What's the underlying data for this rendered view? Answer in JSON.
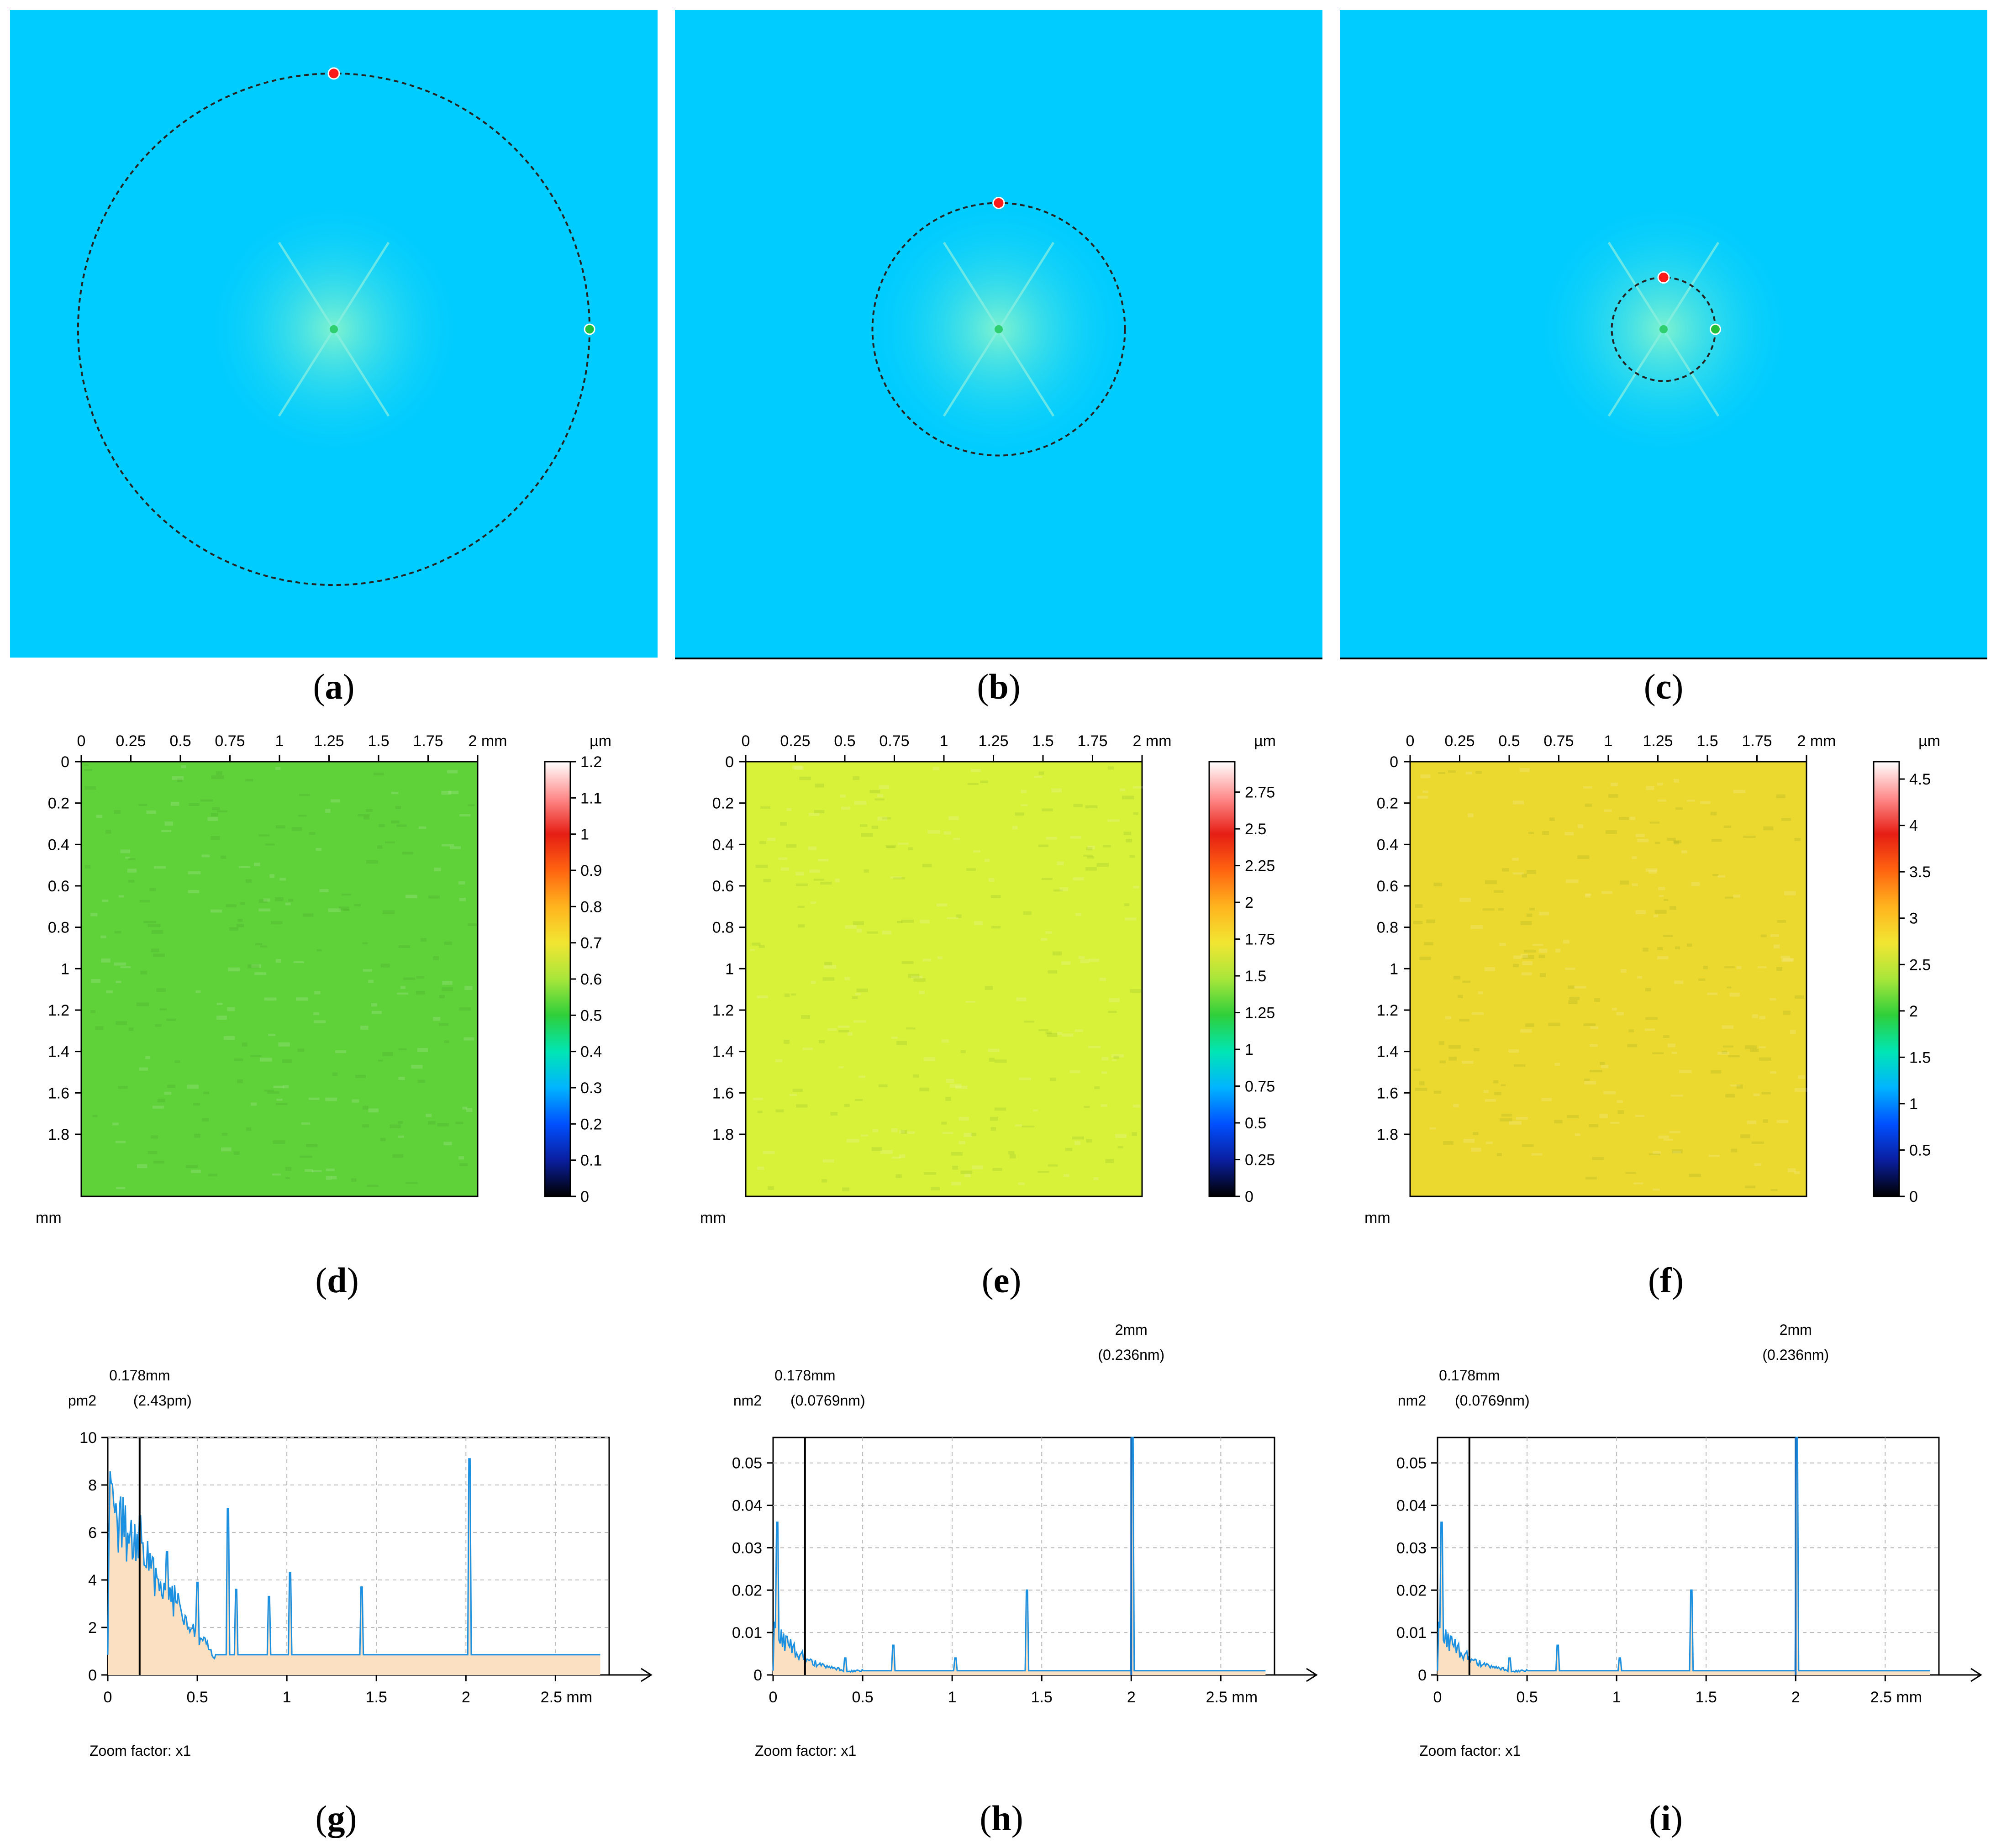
{
  "figure": {
    "fft_panels": [
      {
        "label": "a",
        "circle_radius_rel": 0.79
      },
      {
        "label": "b",
        "circle_radius_rel": 0.39
      },
      {
        "label": "c",
        "circle_radius_rel": 0.16
      }
    ],
    "height_maps": [
      {
        "label": "d",
        "unit": "µm",
        "scale_ticks": [
          "1.2",
          "1.1",
          "1",
          "0.9",
          "0.8",
          "0.7",
          "0.6",
          "0.5",
          "0.4",
          "0.3",
          "0.2",
          "0.1",
          "0"
        ],
        "surface_color": "#5fd23a"
      },
      {
        "label": "e",
        "unit": "µm",
        "scale_ticks": [
          "2.75",
          "2.5",
          "2.25",
          "2",
          "1.75",
          "1.5",
          "1.25",
          "1",
          "0.75",
          "0.5",
          "0.25",
          "0"
        ],
        "surface_color": "#d8f23a"
      },
      {
        "label": "f",
        "unit": "µm",
        "scale_ticks": [
          "4.5",
          "4",
          "3.5",
          "3",
          "2.5",
          "2",
          "1.5",
          "1",
          "0.5",
          "0"
        ],
        "surface_color": "#ecd92f"
      }
    ],
    "map_axis": {
      "x_ticks": [
        "0",
        "0.25",
        "0.5",
        "0.75",
        "1",
        "1.25",
        "1.5",
        "1.75",
        "2 mm"
      ],
      "y_ticks": [
        "0",
        "0.2",
        "0.4",
        "0.6",
        "0.8",
        "1",
        "1.2",
        "1.4",
        "1.6",
        "1.8"
      ],
      "y_unit": "mm"
    },
    "zoom_label": "Zoom factor: x1",
    "colors": {
      "fft_bg": "#00ccff",
      "fft_center": "#7ef2d0",
      "trace": "#1b8fe0",
      "fill": "#fbe1c2",
      "grid": "#bbbbbb"
    }
  },
  "chart_data": [
    {
      "type": "line",
      "label": "g",
      "title": "",
      "xlabel": "mm",
      "ylabel": "pm2",
      "xlim": [
        0,
        2.8
      ],
      "ylim": [
        0,
        10
      ],
      "x_ticks": [
        "0",
        "0.5",
        "1",
        "1.5",
        "2",
        "2.5 mm"
      ],
      "y_ticks": [
        "0",
        "2",
        "4",
        "6",
        "8",
        "10"
      ],
      "cursors": [
        {
          "x": 0.178,
          "label": "0.178mm",
          "value": "(2.43pm)"
        }
      ],
      "baseline": 0.85,
      "peaks": [
        [
          0.18,
          6.7
        ],
        [
          0.33,
          5.2
        ],
        [
          0.5,
          3.9
        ],
        [
          0.67,
          7.0
        ],
        [
          0.72,
          3.6
        ],
        [
          0.9,
          3.3
        ],
        [
          1.02,
          4.3
        ],
        [
          1.42,
          3.7
        ],
        [
          2.02,
          9.1
        ]
      ]
    },
    {
      "type": "line",
      "label": "h",
      "title": "",
      "xlabel": "mm",
      "ylabel": "nm2",
      "xlim": [
        0,
        2.8
      ],
      "ylim": [
        0,
        0.056
      ],
      "x_ticks": [
        "0",
        "0.5",
        "1",
        "1.5",
        "2",
        "2.5 mm"
      ],
      "y_ticks": [
        "0",
        "0.01",
        "0.02",
        "0.03",
        "0.04",
        "0.05"
      ],
      "cursors": [
        {
          "x": 0.178,
          "label": "0.178mm",
          "value": "(0.0769nm)"
        },
        {
          "x": 2.0,
          "label": "2mm",
          "value": "(0.236nm)"
        }
      ],
      "baseline": 0.001,
      "peaks": [
        [
          0.02,
          0.036
        ],
        [
          0.4,
          0.004
        ],
        [
          0.67,
          0.007
        ],
        [
          1.02,
          0.004
        ],
        [
          1.42,
          0.02
        ],
        [
          2.01,
          0.056
        ]
      ]
    },
    {
      "type": "line",
      "label": "i",
      "title": "",
      "xlabel": "mm",
      "ylabel": "nm2",
      "xlim": [
        0,
        2.8
      ],
      "ylim": [
        0,
        0.056
      ],
      "x_ticks": [
        "0",
        "0.5",
        "1",
        "1.5",
        "2",
        "2.5 mm"
      ],
      "y_ticks": [
        "0",
        "0.01",
        "0.02",
        "0.03",
        "0.04",
        "0.05"
      ],
      "cursors": [
        {
          "x": 0.178,
          "label": "0.178mm",
          "value": "(0.0769nm)"
        },
        {
          "x": 2.0,
          "label": "2mm",
          "value": "(0.236nm)"
        }
      ],
      "baseline": 0.001,
      "peaks": [
        [
          0.02,
          0.036
        ],
        [
          0.4,
          0.004
        ],
        [
          0.67,
          0.007
        ],
        [
          1.02,
          0.004
        ],
        [
          1.42,
          0.02
        ],
        [
          2.01,
          0.056
        ]
      ]
    }
  ]
}
